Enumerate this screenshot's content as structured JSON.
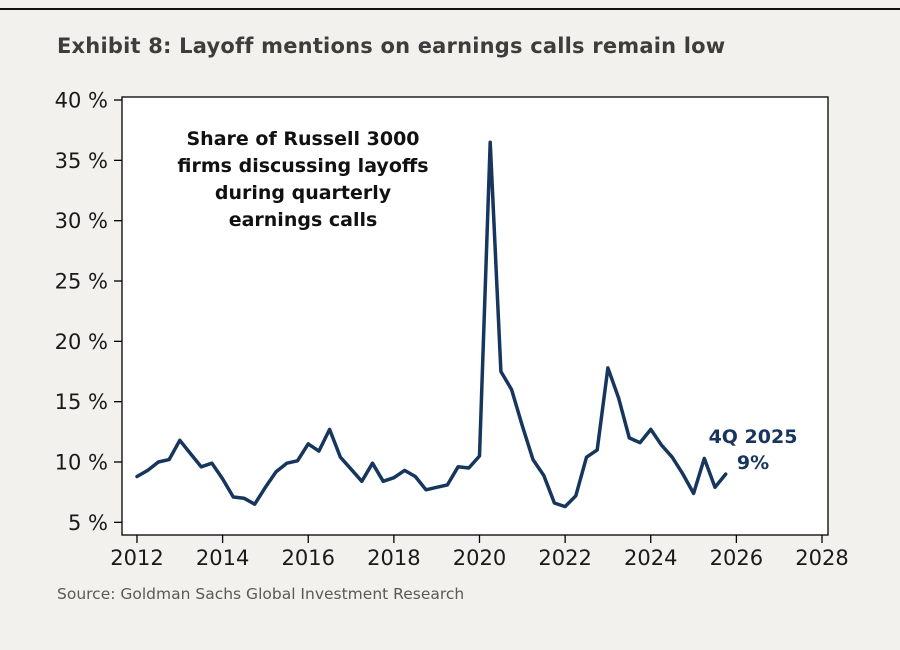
{
  "page": {
    "title": "Exhibit 8: Layoff mentions on earnings calls remain low",
    "source": "Source: Goldman Sachs Global Investment Research"
  },
  "colors": {
    "line": "#17365d",
    "title_text": "#3d3d3d",
    "axis_text": "#1a1a1a",
    "source_text": "#595959",
    "background": "#f2f1ee",
    "plot_background": "#ffffff",
    "plot_border": "#000000",
    "annotation_text": "#111111",
    "end_label_text": "#17365d"
  },
  "annotations": {
    "note_lines": [
      "Share of Russell 3000",
      "firms discussing layoffs",
      "during quarterly",
      "earnings calls"
    ],
    "end_label": {
      "line1": "4Q 2025",
      "line2": "9%"
    }
  },
  "chart_data": {
    "type": "line",
    "title": "Exhibit 8: Layoff mentions on earnings calls remain low",
    "series_name": "Share of Russell 3000 firms discussing layoffs during quarterly earnings calls",
    "unit": "%",
    "grid": false,
    "legend": "none",
    "x_ticks": [
      2012,
      2014,
      2016,
      2018,
      2020,
      2022,
      2024,
      2026,
      2028
    ],
    "y_ticks": [
      5,
      10,
      15,
      20,
      25,
      30,
      35,
      40
    ],
    "y_tick_suffix": " %",
    "xlim": [
      2011.65,
      2028.14
    ],
    "ylim_drawn": [
      3.95,
      40.25
    ],
    "latest": {
      "label": "4Q 2025",
      "value": 9
    },
    "x": [
      2012,
      2012.25,
      2012.5,
      2012.75,
      2013,
      2013.25,
      2013.5,
      2013.75,
      2014,
      2014.25,
      2014.5,
      2014.75,
      2015,
      2015.25,
      2015.5,
      2015.75,
      2016,
      2016.25,
      2016.5,
      2016.75,
      2017,
      2017.25,
      2017.5,
      2017.75,
      2018,
      2018.25,
      2018.5,
      2018.75,
      2019,
      2019.25,
      2019.5,
      2019.75,
      2020,
      2020.25,
      2020.5,
      2020.75,
      2021,
      2021.25,
      2021.5,
      2021.75,
      2022,
      2022.25,
      2022.5,
      2022.75,
      2023,
      2023.25,
      2023.5,
      2023.75,
      2024,
      2024.25,
      2024.5,
      2024.75,
      2025,
      2025.25,
      2025.5,
      2025.75
    ],
    "values": [
      8.8,
      9.3,
      10.0,
      10.2,
      11.8,
      10.7,
      9.6,
      9.9,
      8.6,
      7.1,
      7.0,
      6.5,
      7.9,
      9.2,
      9.9,
      10.1,
      11.5,
      10.9,
      12.7,
      10.4,
      9.4,
      8.4,
      9.9,
      8.4,
      8.7,
      9.3,
      8.8,
      7.7,
      7.9,
      8.1,
      9.6,
      9.5,
      10.5,
      36.5,
      17.5,
      16.0,
      13.0,
      10.2,
      8.9,
      6.6,
      6.3,
      7.2,
      10.4,
      11.0,
      17.8,
      15.3,
      12.0,
      11.6,
      12.7,
      11.4,
      10.4,
      9.0,
      7.4,
      10.3,
      7.9,
      9.0
    ]
  }
}
